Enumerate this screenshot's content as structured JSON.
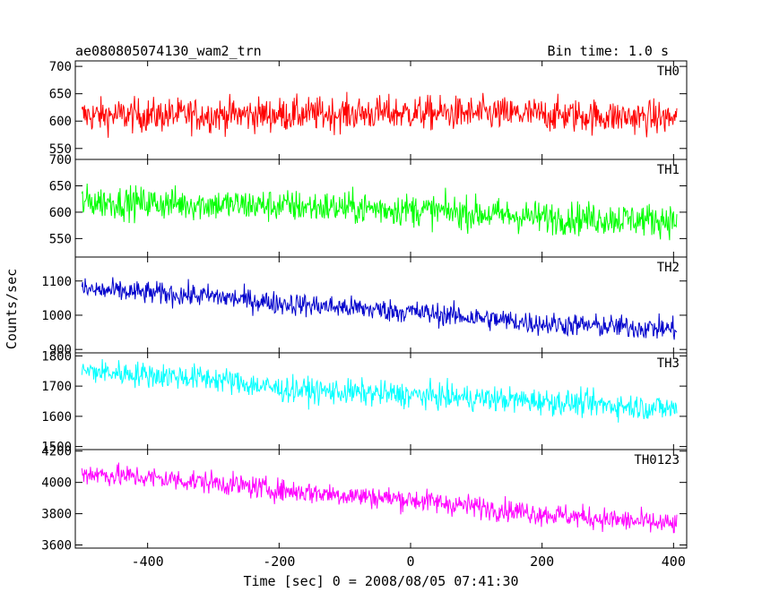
{
  "header": {
    "title": "ae080805074130_wam2_trn",
    "bin_time": "Bin time: 1.0 s"
  },
  "axes": {
    "xlabel": "Time [sec] 0 = 2008/08/05 07:41:30",
    "ylabel": "Counts/sec"
  },
  "chart_data": [
    {
      "type": "line",
      "name": "TH0",
      "color": "#ff0000",
      "xlim": [
        -510,
        420
      ],
      "ylim": [
        530,
        710
      ],
      "yticks": [
        550,
        600,
        650,
        700
      ],
      "trend": [
        [
          -500,
          610
        ],
        [
          -200,
          612
        ],
        [
          0,
          615
        ],
        [
          200,
          612
        ],
        [
          400,
          605
        ]
      ],
      "noise": 28,
      "x_range": [
        -500,
        405
      ]
    },
    {
      "type": "line",
      "name": "TH1",
      "color": "#00ff00",
      "xlim": [
        -510,
        420
      ],
      "ylim": [
        515,
        700
      ],
      "yticks": [
        550,
        600,
        650,
        700
      ],
      "trend": [
        [
          -500,
          620
        ],
        [
          -200,
          612
        ],
        [
          0,
          605
        ],
        [
          200,
          590
        ],
        [
          400,
          585
        ]
      ],
      "noise": 28,
      "x_range": [
        -500,
        405
      ]
    },
    {
      "type": "line",
      "name": "TH2",
      "color": "#0000cc",
      "xlim": [
        -510,
        420
      ],
      "ylim": [
        890,
        1170
      ],
      "yticks": [
        900,
        1000,
        1100
      ],
      "trend": [
        [
          -500,
          1075
        ],
        [
          -300,
          1055
        ],
        [
          -200,
          1035
        ],
        [
          0,
          1010
        ],
        [
          200,
          975
        ],
        [
          400,
          960
        ]
      ],
      "noise": 30,
      "x_range": [
        -500,
        405
      ]
    },
    {
      "type": "line",
      "name": "TH3",
      "color": "#00ffff",
      "xlim": [
        -510,
        420
      ],
      "ylim": [
        1490,
        1810
      ],
      "yticks": [
        1500,
        1600,
        1700,
        1800
      ],
      "trend": [
        [
          -500,
          1750
        ],
        [
          -300,
          1725
        ],
        [
          -200,
          1690
        ],
        [
          0,
          1670
        ],
        [
          200,
          1650
        ],
        [
          400,
          1625
        ]
      ],
      "noise": 38,
      "x_range": [
        -500,
        405
      ]
    },
    {
      "type": "line",
      "name": "TH0123",
      "color": "#ff00ff",
      "xlim": [
        -510,
        420
      ],
      "ylim": [
        3580,
        4210
      ],
      "yticks": [
        3600,
        3800,
        4000,
        4200
      ],
      "trend": [
        [
          -500,
          4060
        ],
        [
          -300,
          4000
        ],
        [
          -200,
          3950
        ],
        [
          0,
          3890
        ],
        [
          200,
          3800
        ],
        [
          400,
          3730
        ]
      ],
      "noise": 65,
      "x_range": [
        -500,
        405
      ]
    }
  ],
  "xticks": [
    -400,
    -200,
    0,
    200,
    400
  ]
}
